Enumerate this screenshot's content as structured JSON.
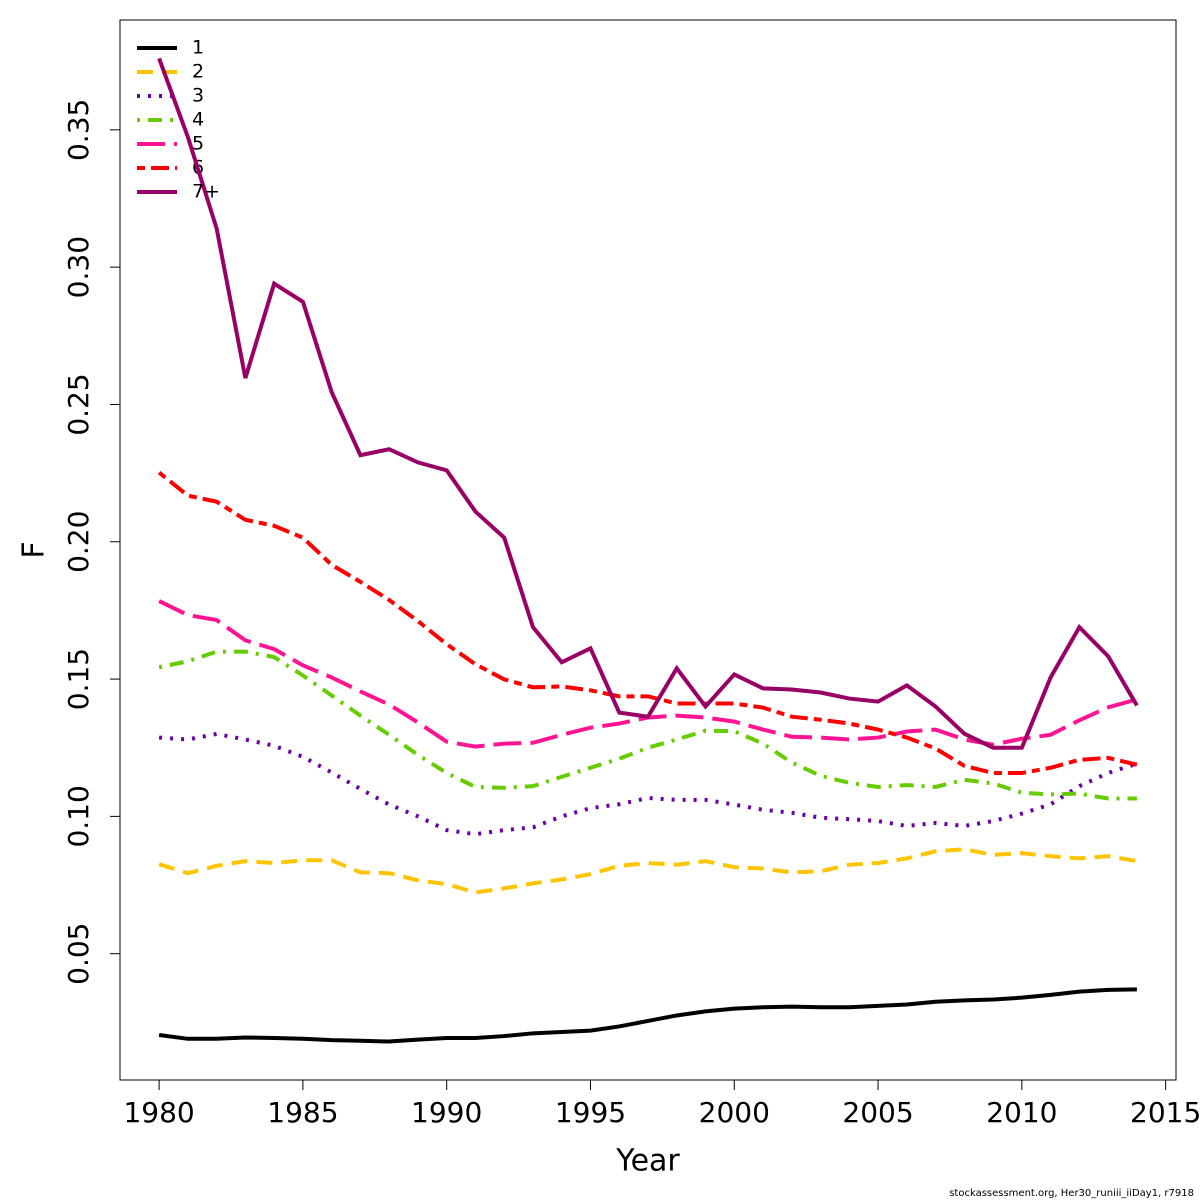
{
  "chart_data": {
    "type": "line",
    "x_label": "Year",
    "y_label": "F",
    "footer": "stockassessment.org, Her30_runiii_iiDay1, r7918",
    "legend": "top-left",
    "x": [
      1980,
      1981,
      1982,
      1983,
      1984,
      1985,
      1986,
      1987,
      1988,
      1989,
      1990,
      1991,
      1992,
      1993,
      1994,
      1995,
      1996,
      1997,
      1998,
      1999,
      2000,
      2001,
      2002,
      2003,
      2004,
      2005,
      2006,
      2007,
      2008,
      2009,
      2010,
      2011,
      2012,
      2013,
      2014
    ],
    "xlim": [
      1978.64,
      2015.36
    ],
    "xticks": [
      1980,
      1985,
      1990,
      1995,
      2000,
      2005,
      2010,
      2015
    ],
    "ylim": [
      0.004,
      0.39
    ],
    "yticks": [
      0.05,
      {
        "value": 0.1,
        "label": "0.10"
      },
      0.15,
      {
        "value": 0.2,
        "label": "0.20"
      },
      0.25,
      {
        "value": 0.3,
        "label": "0.30"
      },
      0.35
    ],
    "series": [
      {
        "name": "1",
        "color": "#000000",
        "line_style": "solid",
        "values": [
          0.0204,
          0.019,
          0.019,
          0.0195,
          0.0193,
          0.019,
          0.0185,
          0.0183,
          0.018,
          0.0187,
          0.0193,
          0.0193,
          0.02,
          0.021,
          0.0215,
          0.022,
          0.0235,
          0.0255,
          0.0275,
          0.029,
          0.03,
          0.0305,
          0.0307,
          0.0305,
          0.0305,
          0.031,
          0.0315,
          0.0325,
          0.033,
          0.0333,
          0.034,
          0.035,
          0.0362,
          0.0368,
          0.037
        ]
      },
      {
        "name": "2",
        "color": "#ffc400",
        "line_style": "dashed",
        "values": [
          0.0826,
          0.0793,
          0.082,
          0.0837,
          0.083,
          0.084,
          0.084,
          0.0796,
          0.0793,
          0.0767,
          0.0753,
          0.0723,
          0.0738,
          0.0756,
          0.077,
          0.079,
          0.082,
          0.083,
          0.0824,
          0.0837,
          0.0815,
          0.081,
          0.0796,
          0.08,
          0.0824,
          0.083,
          0.0847,
          0.0873,
          0.088,
          0.086,
          0.0866,
          0.0855,
          0.0847,
          0.0855,
          0.0837
        ]
      },
      {
        "name": "3",
        "color": "#6a00a8",
        "line_style": "dotted",
        "values": [
          0.1287,
          0.128,
          0.13,
          0.128,
          0.1257,
          0.1217,
          0.116,
          0.11,
          0.1043,
          0.1,
          0.095,
          0.0935,
          0.095,
          0.096,
          0.1,
          0.103,
          0.1044,
          0.1067,
          0.106,
          0.106,
          0.1043,
          0.1024,
          0.1013,
          0.0995,
          0.099,
          0.0983,
          0.0965,
          0.0976,
          0.0965,
          0.0983,
          0.101,
          0.1044,
          0.111,
          0.1158,
          0.1192
        ]
      },
      {
        "name": "4",
        "color": "#66cc00",
        "line_style": "dotdash",
        "values": [
          0.1543,
          0.1565,
          0.16,
          0.16,
          0.158,
          0.1513,
          0.144,
          0.1367,
          0.1297,
          0.1224,
          0.1158,
          0.1107,
          0.1104,
          0.111,
          0.1144,
          0.1177,
          0.121,
          0.125,
          0.128,
          0.1312,
          0.131,
          0.1265,
          0.1196,
          0.1148,
          0.1122,
          0.1107,
          0.1114,
          0.1107,
          0.1133,
          0.112,
          0.1086,
          0.108,
          0.1083,
          0.1065,
          0.1065
        ]
      },
      {
        "name": "5",
        "color": "#ff1493",
        "line_style": "longdash",
        "values": [
          0.1784,
          0.1733,
          0.1715,
          0.1641,
          0.1609,
          0.155,
          0.1506,
          0.1455,
          0.1407,
          0.1342,
          0.1272,
          0.1254,
          0.1265,
          0.1268,
          0.1297,
          0.1323,
          0.1338,
          0.136,
          0.1367,
          0.136,
          0.1345,
          0.1316,
          0.129,
          0.1287,
          0.128,
          0.1287,
          0.1309,
          0.1316,
          0.128,
          0.1261,
          0.1283,
          0.1297,
          0.135,
          0.1397,
          0.1426
        ]
      },
      {
        "name": "6",
        "color": "#ff0000",
        "line_style": "twodash",
        "values": [
          0.2252,
          0.2168,
          0.2146,
          0.208,
          0.2058,
          0.2015,
          0.1916,
          0.1854,
          0.1788,
          0.1711,
          0.1627,
          0.1554,
          0.1499,
          0.147,
          0.1473,
          0.1459,
          0.1437,
          0.1437,
          0.1411,
          0.1411,
          0.1411,
          0.1396,
          0.1363,
          0.1352,
          0.1338,
          0.1316,
          0.1287,
          0.1247,
          0.1184,
          0.1158,
          0.1158,
          0.1177,
          0.1206,
          0.1213,
          0.1188
        ]
      },
      {
        "name": "7+",
        "color": "#990066",
        "line_style": "solid",
        "values": [
          0.376,
          0.3474,
          0.3141,
          0.2596,
          0.294,
          0.2874,
          0.2545,
          0.2315,
          0.2337,
          0.2289,
          0.226,
          0.211,
          0.2015,
          0.1689,
          0.1561,
          0.1612,
          0.1378,
          0.1363,
          0.1539,
          0.14,
          0.1517,
          0.1466,
          0.1462,
          0.1451,
          0.1429,
          0.1418,
          0.1477,
          0.14,
          0.1301,
          0.125,
          0.125,
          0.1506,
          0.1689,
          0.1583,
          0.1404
        ]
      }
    ]
  }
}
